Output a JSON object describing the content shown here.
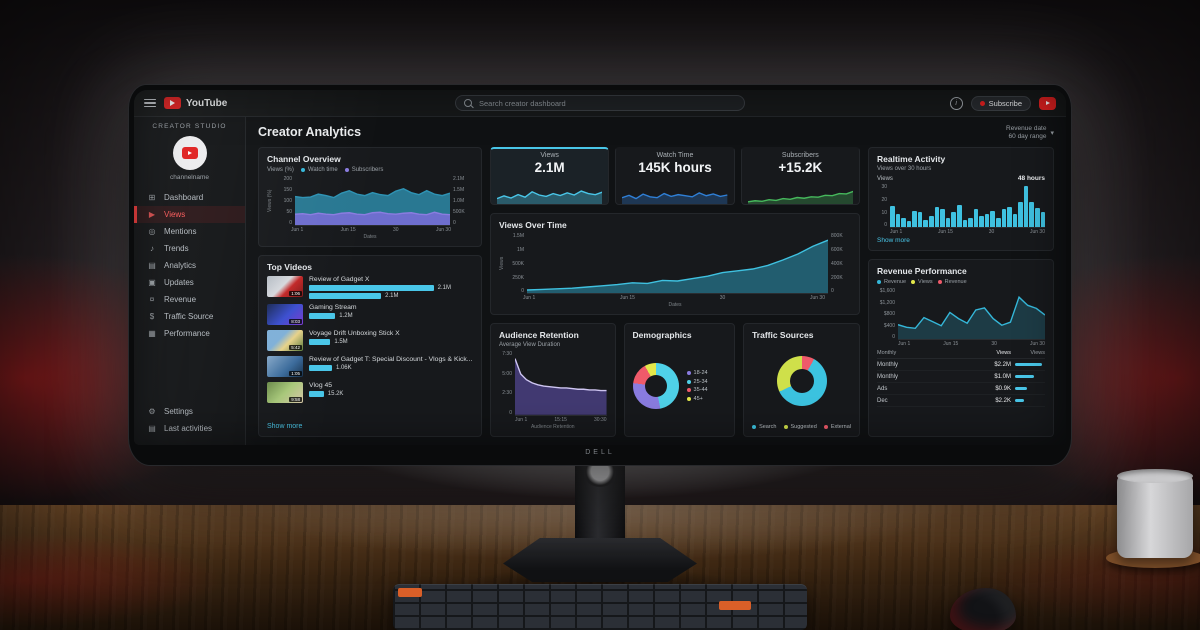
{
  "monitor": {
    "brand": "DELL"
  },
  "topbar": {
    "logo": "YouTube",
    "search_placeholder": "Search creator dashboard",
    "account": "Subscribe"
  },
  "sidebar": {
    "studio": "CREATOR STUDIO",
    "channel": "channelname",
    "items": [
      {
        "label": "Dashboard",
        "icon": "⊞",
        "color": "#b6bcc2",
        "bg": "transparent",
        "edge": "3px solid transparent"
      },
      {
        "label": "Views",
        "icon": "▶",
        "color": "#ff5b5b",
        "bg": "rgba(255,50,50,.10)",
        "edge": "3px solid #ff3d3d"
      },
      {
        "label": "Mentions",
        "icon": "◎",
        "color": "#b6bcc2",
        "bg": "transparent",
        "edge": "3px solid transparent"
      },
      {
        "label": "Trends",
        "icon": "♪",
        "color": "#b6bcc2",
        "bg": "transparent",
        "edge": "3px solid transparent"
      },
      {
        "label": "Analytics",
        "icon": "▤",
        "color": "#b6bcc2",
        "bg": "transparent",
        "edge": "3px solid transparent"
      },
      {
        "label": "Updates",
        "icon": "▣",
        "color": "#b6bcc2",
        "bg": "transparent",
        "edge": "3px solid transparent"
      },
      {
        "label": "Revenue",
        "icon": "¤",
        "color": "#b6bcc2",
        "bg": "transparent",
        "edge": "3px solid transparent"
      },
      {
        "label": "Traffic Source",
        "icon": "$",
        "color": "#b6bcc2",
        "bg": "transparent",
        "edge": "3px solid transparent"
      },
      {
        "label": "Performance",
        "icon": "▦",
        "color": "#b6bcc2",
        "bg": "transparent",
        "edge": "3px solid transparent"
      }
    ],
    "footer": [
      {
        "label": "Settings",
        "icon": "⚙",
        "color": "#b6bcc2",
        "bg": "transparent",
        "edge": "3px solid transparent"
      },
      {
        "label": "Last activities",
        "icon": "▤",
        "color": "#b6bcc2",
        "bg": "transparent",
        "edge": "3px solid transparent"
      }
    ]
  },
  "main": {
    "title": "Creator Analytics",
    "filter1": "Revenue date",
    "filter2": "60 day range",
    "chevron": "▾"
  },
  "channel_overview": {
    "title": "Channel Overview",
    "series_label": "Views (%)",
    "legend": [
      {
        "label": "Watch time",
        "color": "#35b7d9"
      },
      {
        "label": "Subscribers",
        "color": "#8a7ce0"
      }
    ],
    "ylabel": "Views (%)",
    "yticks_left": [
      "200",
      "150",
      "100",
      "50",
      "0"
    ],
    "yticks_right": [
      "2.1M",
      "1.5M",
      "1.0M",
      "500K",
      "0"
    ],
    "xticks": [
      "Jun 1",
      "Jun 15",
      "30",
      "Jun 30"
    ],
    "xlabel": "Dates",
    "chart": {
      "series": [
        {
          "color": "#2e93b4",
          "fill": "rgba(46,147,180,.78)",
          "values": [
            58,
            56,
            57,
            63,
            60,
            56,
            65,
            70,
            63,
            60,
            66,
            62,
            60,
            69,
            74,
            66,
            62,
            70,
            63,
            60,
            65
          ]
        },
        {
          "color": "#8a7ce0",
          "fill": "rgba(122,108,216,.85)",
          "values": [
            22,
            23,
            21,
            24,
            22,
            21,
            24,
            25,
            22,
            21,
            25,
            26,
            23,
            22,
            24,
            25,
            22,
            21,
            26,
            22,
            21
          ]
        }
      ]
    }
  },
  "stats": {
    "cards": [
      {
        "label": "Views",
        "value": "2.1M",
        "bg": "#1b2227",
        "topline": "2px solid #49c6e8",
        "chart": {
          "color": "#49c6e8",
          "fill": "rgba(73,198,232,.35)",
          "values": [
            30,
            45,
            33,
            52,
            38,
            68,
            50,
            42,
            58,
            47,
            62,
            50,
            72,
            58,
            52,
            66
          ]
        }
      },
      {
        "label": "Watch Time",
        "value": "145K hours",
        "bg": "#17191c",
        "topline": "2px solid transparent",
        "chart": {
          "color": "#2f7fd6",
          "fill": "rgba(47,127,214,.3)",
          "values": [
            35,
            48,
            30,
            55,
            40,
            35,
            58,
            42,
            52,
            46,
            40,
            62,
            46,
            56,
            42,
            50
          ]
        }
      },
      {
        "label": "Subscribers",
        "value": "+15.2K",
        "bg": "#17191c",
        "topline": "2px solid transparent",
        "chart": {
          "color": "#46b85c",
          "fill": "rgba(70,184,92,.3)",
          "values": [
            12,
            18,
            15,
            24,
            20,
            30,
            26,
            36,
            32,
            40,
            38,
            48,
            46,
            58,
            56,
            70
          ]
        }
      }
    ]
  },
  "views_over_time": {
    "title": "Views Over Time",
    "ylabel": "Views",
    "yticks_left": [
      "1.5M",
      "1M",
      "500K",
      "250K",
      "0"
    ],
    "yticks_right": [
      "800K",
      "600K",
      "400K",
      "200K",
      "0"
    ],
    "xticks": [
      "Jun 1",
      "Jun 15",
      "30",
      "Jun 30"
    ],
    "xlabel": "Dates",
    "chart": {
      "color": "#3fc1e0",
      "fill": "rgba(43,150,180,.55)",
      "values": [
        5,
        6,
        7,
        8,
        10,
        12,
        14,
        17,
        16,
        21,
        20,
        24,
        28,
        34,
        37,
        40,
        46,
        55,
        65,
        78,
        88
      ]
    }
  },
  "audience_retention": {
    "title": "Audience Retention",
    "subtitle": "Average View Duration",
    "yticks": [
      "7:30",
      "5:00",
      "2:30",
      "0"
    ],
    "xticks": [
      "Jun 1",
      "15:15",
      "30:30"
    ],
    "xlabel": "Audience Retention",
    "chart": {
      "color": "#cfc6f2",
      "fill": "rgba(110,92,200,.5)",
      "values": [
        88,
        64,
        55,
        50,
        47,
        45,
        44,
        43,
        42,
        42,
        41,
        40,
        40,
        39,
        39,
        38,
        38
      ]
    }
  },
  "demographics": {
    "title": "Demographics",
    "legend": [
      {
        "label": "18-24",
        "color": "#8a7ce0"
      },
      {
        "label": "25-34",
        "color": "#4fd1e8"
      },
      {
        "label": "35-44",
        "color": "#ef5a6a"
      },
      {
        "label": "45+",
        "color": "#e3e84b"
      }
    ],
    "chart": {
      "slices": [
        {
          "label": "25-34",
          "color": "#4fd1e8",
          "value": 47
        },
        {
          "label": "18-24",
          "color": "#8a7ce0",
          "value": 30
        },
        {
          "label": "35-44",
          "color": "#ef5a6a",
          "value": 15
        },
        {
          "label": "45+",
          "color": "#e3e84b",
          "value": 8
        }
      ]
    }
  },
  "traffic_sources": {
    "title": "Traffic Sources",
    "legend": [
      {
        "label": "Search",
        "color": "#3cc3e0"
      },
      {
        "label": "Suggested",
        "color": "#cfe04a"
      },
      {
        "label": "External",
        "color": "#ef5a6a"
      }
    ],
    "chart": {
      "slices": [
        {
          "label": "External",
          "color": "#ef5a6a",
          "value": 8
        },
        {
          "label": "Search",
          "color": "#3cc3e0",
          "value": 60
        },
        {
          "label": "Suggested",
          "color": "#cfe04a",
          "value": 32
        }
      ]
    }
  },
  "top_videos": {
    "title": "Top Videos",
    "more": "Show more",
    "videos": [
      {
        "title": "Review of Gadget X",
        "duration": "1:06",
        "thumb": "linear-gradient(135deg,#b5bcc4,#d6d9dd 45%,#c22727 62%,#7e1a1a)",
        "bars": [
          {
            "pct": "76%",
            "label": "2.1M"
          },
          {
            "pct": "44%",
            "label": "2.1M"
          }
        ]
      },
      {
        "title": "Gaming Stream",
        "duration": "8:03",
        "thumb": "linear-gradient(135deg,#1a2a55,#3b4fd0 55%,#7a3bd0)",
        "bars": [
          {
            "pct": "16%",
            "label": "1.2M"
          }
        ]
      },
      {
        "title": "Voyage Drift Unboxing Stick X",
        "duration": "5:42",
        "thumb": "linear-gradient(135deg,#7fb0d8 38%,#e8d28a 60%,#5a7a3a)",
        "bars": [
          {
            "pct": "13%",
            "label": "1.5M"
          }
        ]
      },
      {
        "title": "Review of Gadget T: Special Discount - Vlogs & Kick...",
        "duration": "1:05",
        "thumb": "linear-gradient(135deg,#86a8c8,#3a6a9a 60%,#17324e)",
        "bars": [
          {
            "pct": "14%",
            "label": "1.06K"
          }
        ]
      },
      {
        "title": "Vlog 45",
        "duration": "9:58",
        "thumb": "linear-gradient(135deg,#6a8a4a,#a8c87a 50%,#d8c8a8)",
        "bars": [
          {
            "pct": "9%",
            "label": "15.2K"
          }
        ]
      }
    ]
  },
  "realtime": {
    "title": "Realtime Activity",
    "subtitle": "Views over 30 hours",
    "axis_label": "Views",
    "range_label": "48 hours",
    "more": "Show more",
    "yticks": [
      "30",
      "20",
      "10",
      "0"
    ],
    "xticks": [
      "Jun 1",
      "Jun 15",
      "30",
      "Jun 30"
    ],
    "chart": {
      "color": "#3fc1e0",
      "values": [
        50,
        32,
        22,
        15,
        38,
        36,
        16,
        26,
        48,
        42,
        22,
        36,
        52,
        16,
        22,
        42,
        26,
        32,
        38,
        22,
        42,
        48,
        32,
        58,
        95,
        58,
        44,
        36
      ]
    }
  },
  "revenue": {
    "title": "Revenue Performance",
    "legend": [
      {
        "label": "Revenue",
        "color": "#35b7d9"
      },
      {
        "label": "Views",
        "color": "#e3e84b"
      },
      {
        "label": "Revenue",
        "color": "#ef5a6a"
      }
    ],
    "yticks": [
      "$1,600",
      "$1,200",
      "$800",
      "$400",
      "0"
    ],
    "xticks": [
      "Jun 1",
      "Jun 15",
      "30",
      "Jun 30"
    ],
    "chart": {
      "color": "#35b7d9",
      "fill": "rgba(53,183,217,.22)",
      "values": [
        28,
        23,
        21,
        42,
        34,
        26,
        52,
        40,
        31,
        57,
        61,
        40,
        27,
        33,
        82,
        66,
        60,
        47
      ]
    },
    "table": {
      "headers": [
        "Monthly",
        "Views",
        "Views"
      ],
      "rows": [
        {
          "label": "Monthly",
          "value": "$2.2M",
          "pct": "90%"
        },
        {
          "label": "Monthly",
          "value": "$1.0M",
          "pct": "62%"
        },
        {
          "label": "Ads",
          "value": "$0.9K",
          "pct": "40%"
        },
        {
          "label": "Dec",
          "value": "$2.2K",
          "pct": "30%"
        }
      ]
    }
  }
}
